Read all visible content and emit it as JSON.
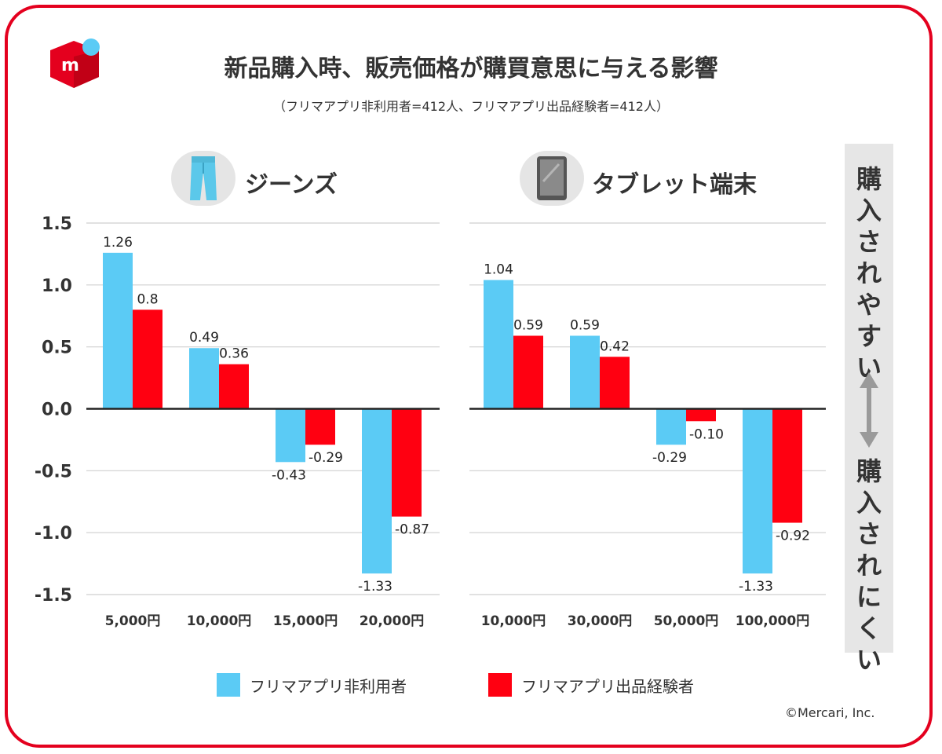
{
  "title": "新品購入時、販売価格が購買意思に与える影響",
  "subtitle": "（フリマアプリ非利用者=412人、フリマアプリ出品経験者=412人）",
  "side_label_top": [
    "購",
    "入",
    "さ",
    "れ",
    "や",
    "す",
    "い"
  ],
  "side_label_bottom": [
    "購",
    "入",
    "さ",
    "れ",
    "に",
    "く",
    "い"
  ],
  "copyright": "©Mercari, Inc.",
  "colors": {
    "non_user": "#5bcbf5",
    "seller": "#ff0011",
    "brand": "#e4001e"
  },
  "icons": {
    "logo": "mercari-logo-icon",
    "jeans": "jeans-icon",
    "tablet": "tablet-icon",
    "arrow": "up-down-arrow-icon"
  },
  "legend": [
    {
      "label": "フリマアプリ非利用者",
      "color": "#5bcbf5"
    },
    {
      "label": "フリマアプリ出品経験者",
      "color": "#ff0011"
    }
  ],
  "chart_data": [
    {
      "type": "bar",
      "title": "ジーンズ",
      "categories": [
        "5,000円",
        "10,000円",
        "15,000円",
        "20,000円"
      ],
      "series": [
        {
          "name": "フリマアプリ非利用者",
          "values": [
            1.26,
            0.49,
            -0.43,
            -1.33
          ],
          "labels": [
            "1.26",
            "0.49",
            "-0.43",
            "-1.33"
          ]
        },
        {
          "name": "フリマアプリ出品経験者",
          "values": [
            0.8,
            0.36,
            -0.29,
            -0.87
          ],
          "labels": [
            "0.8",
            "0.36",
            "-0.29",
            "-0.87"
          ]
        }
      ],
      "ylim": [
        -1.5,
        1.5
      ],
      "yticks": [
        "1.5",
        "1.0",
        "0.5",
        "0.0",
        "-0.5",
        "-1.0",
        "-1.5"
      ],
      "grid": true
    },
    {
      "type": "bar",
      "title": "タブレット端末",
      "categories": [
        "10,000円",
        "30,000円",
        "50,000円",
        "100,000円"
      ],
      "series": [
        {
          "name": "フリマアプリ非利用者",
          "values": [
            1.04,
            0.59,
            -0.29,
            -1.33
          ],
          "labels": [
            "1.04",
            "0.59",
            "-0.29",
            "-1.33"
          ]
        },
        {
          "name": "フリマアプリ出品経験者",
          "values": [
            0.59,
            0.42,
            -0.1,
            -0.92
          ],
          "labels": [
            "0.59",
            "0.42",
            "-0.10",
            "-0.92"
          ]
        }
      ],
      "ylim": [
        -1.5,
        1.5
      ],
      "grid": true
    }
  ]
}
